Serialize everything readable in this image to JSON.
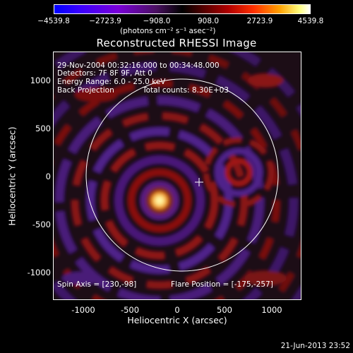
{
  "colorbar": {
    "ticks": [
      "−4539.8",
      "−2723.9",
      "−908.0",
      "908.0",
      "2723.9",
      "4539.8"
    ],
    "unit": "(photons cm⁻² s⁻¹ asec⁻²)"
  },
  "title": "Reconstructed RHESSI Image",
  "info": {
    "time": "29-Nov-2004 00:32:16.000 to 00:34:48.000",
    "detectors": "Detectors: 7F 8F 9F, Att 0",
    "energy": "Energy Range: 6.0 - 25.0 keV",
    "method": "Back Projection",
    "counts": "Total counts: 8.30E+03",
    "spin_axis": "Spin Axis = [230,-98]",
    "flare_position": "Flare Position = [-175,-257]"
  },
  "axes": {
    "xlabel": "Heliocentric X (arcsec)",
    "ylabel": "Heliocentric Y (arcsec)",
    "xticks": [
      "-1000",
      "-500",
      "0",
      "500",
      "1000"
    ],
    "yticks": [
      "1000",
      "500",
      "0",
      "-500",
      "-1000"
    ],
    "xrange": [
      -1280,
      1380
    ],
    "yrange": [
      -1130,
      1220
    ]
  },
  "plot_date": "21-Jun-2013 23:52"
}
